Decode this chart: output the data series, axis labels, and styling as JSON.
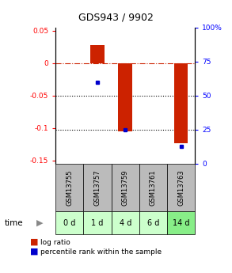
{
  "title": "GDS943 / 9902",
  "samples": [
    "GSM13755",
    "GSM13757",
    "GSM13759",
    "GSM13761",
    "GSM13763"
  ],
  "time_labels": [
    "0 d",
    "1 d",
    "4 d",
    "6 d",
    "14 d"
  ],
  "log_ratio": [
    0.0,
    0.028,
    -0.105,
    0.0,
    -0.123
  ],
  "percentile": [
    null,
    60,
    25,
    null,
    13
  ],
  "ylim_left": [
    -0.155,
    0.055
  ],
  "ylim_right": [
    0,
    100
  ],
  "bar_color": "#CC2200",
  "point_color": "#0000CC",
  "dashed_line_color": "#CC2200",
  "dotted_line_color": "#000000",
  "left_yticks": [
    0.05,
    0,
    -0.05,
    -0.1,
    -0.15
  ],
  "left_yticklabels": [
    "0.05",
    "0",
    "-0.05",
    "-0.1",
    "-0.15"
  ],
  "right_yticks": [
    100,
    75,
    50,
    25,
    0
  ],
  "right_yticklabels": [
    "100%",
    "75",
    "50",
    "25",
    "0"
  ],
  "bar_width": 0.5,
  "gsm_box_color": "#BBBBBB",
  "time_box_colors": [
    "#CCFFCC",
    "#CCFFCC",
    "#CCFFCC",
    "#CCFFCC",
    "#88EE88"
  ],
  "legend_log_ratio": "log ratio",
  "legend_percentile": "percentile rank within the sample",
  "fig_width": 2.93,
  "fig_height": 3.45,
  "dpi": 100
}
